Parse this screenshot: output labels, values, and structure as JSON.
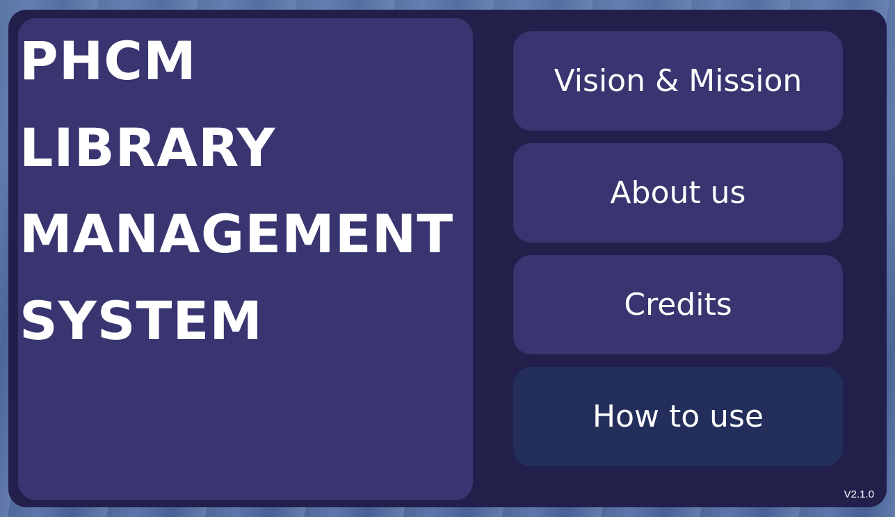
{
  "title": {
    "lines": [
      "PHCM",
      "LIBRARY",
      "MANAGEMENT",
      "SYSTEM"
    ]
  },
  "menu": {
    "items": [
      {
        "label": "Vision & Mission"
      },
      {
        "label": "About us"
      },
      {
        "label": "Credits"
      },
      {
        "label": "How to use"
      }
    ]
  },
  "version": "V2.1.0",
  "colors": {
    "panel": "#221f4b",
    "card": "#383570",
    "active_button": "#232e5b",
    "text": "#ffffff"
  }
}
